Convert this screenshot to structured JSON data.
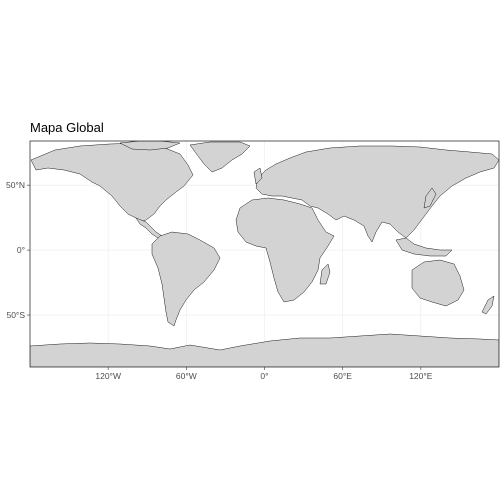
{
  "title": "Mapa Global",
  "x_ticks": [
    {
      "lon": -120,
      "label": "120°W"
    },
    {
      "lon": -60,
      "label": "60°W"
    },
    {
      "lon": 0,
      "label": "0°"
    },
    {
      "lon": 60,
      "label": "60°E"
    },
    {
      "lon": 120,
      "label": "120°E"
    }
  ],
  "y_ticks": [
    {
      "lat": 50,
      "label": "50°N"
    },
    {
      "lat": 0,
      "label": "0°"
    },
    {
      "lat": -50,
      "label": "50°S"
    }
  ],
  "extent": {
    "lon": [
      -180,
      180
    ],
    "lat": [
      -90,
      84
    ]
  },
  "colors": {
    "land": "#d3d3d3",
    "border": "#1a1a1a",
    "grid": "#ebebeb",
    "panel_border": "#333333"
  }
}
